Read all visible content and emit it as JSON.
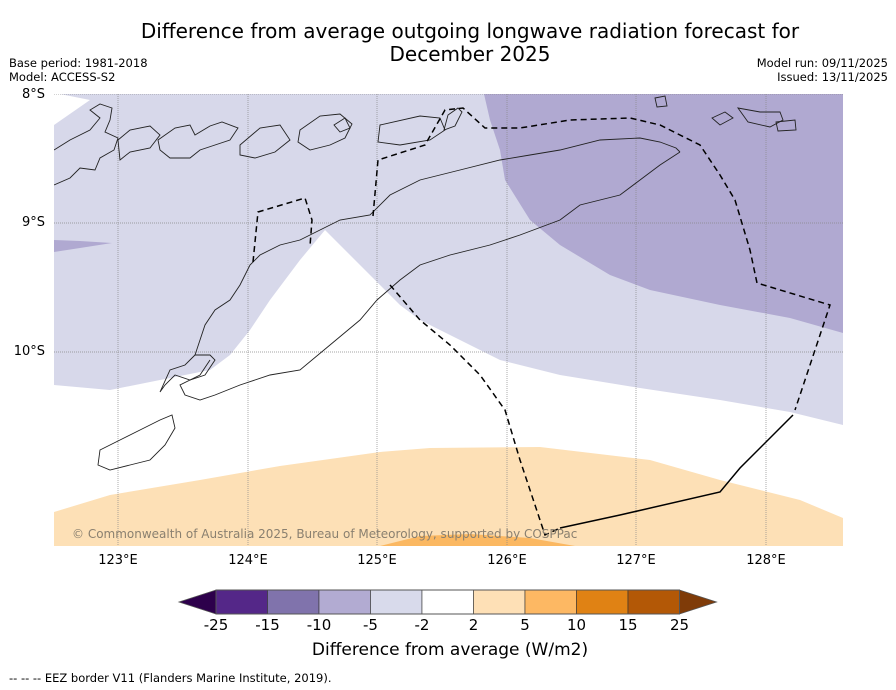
{
  "header": {
    "title_line1": "Difference from average outgoing longwave radiation forecast for",
    "title_line2": "December 2025",
    "base_period": "Base period: 1981-2018",
    "model": "Model: ACCESS-S2",
    "model_run": "Model run: 09/11/2025",
    "issued": "Issued: 13/11/2025"
  },
  "map": {
    "copyright": "© Commonwealth of Australia 2025, Bureau of Meteorology, supported by COSPPac",
    "lat_labels": [
      "8°S",
      "9°S",
      "10°S"
    ],
    "lon_labels": [
      "123°E",
      "124°E",
      "125°E",
      "126°E",
      "127°E",
      "128°E"
    ],
    "extent": {
      "lon": [
        122.5,
        128.6
      ],
      "lat": [
        -8.0,
        -11.5
      ]
    },
    "fill_colors": {
      "minus5_to_minus2": "#d7d8ea",
      "minus10_to_minus5": "#b0a9d1",
      "plus2_to_plus5": "#fde0b6",
      "plus5_to_plus10": "#fbb862"
    },
    "contour_regions": [
      {
        "class": "-5 to -2",
        "area": "north half and west side, including Timor and Flores region"
      },
      {
        "class": "-10 to -5",
        "area": "north-east, around Timor Sea north of 9.5°S east of 126°E"
      },
      {
        "class": "-10 to -5",
        "area": "small tongue near 122.5°E, 9.2°S"
      },
      {
        "class": "-2 to 2",
        "area": "central band from Sumba to 10.5°S"
      },
      {
        "class": "2 to 5",
        "area": "southern band south of ~10.8°S"
      },
      {
        "class": "5 to 10",
        "area": "small patch near 125.5°E at southern edge"
      }
    ]
  },
  "colorbar": {
    "label": "Difference from average (W/m2)",
    "ticks": [
      "-25",
      "-15",
      "-10",
      "-5",
      "-2",
      "2",
      "5",
      "10",
      "15",
      "25"
    ],
    "colors": [
      "#2d004b",
      "#542788",
      "#8073ac",
      "#b2abd2",
      "#d8daeb",
      "#ffffff",
      "#fee0b6",
      "#fdb863",
      "#e08214",
      "#b35806",
      "#7f3b08"
    ]
  },
  "footnote": "--  --  -- EEZ border V11 (Flanders Marine Institute, 2019)."
}
